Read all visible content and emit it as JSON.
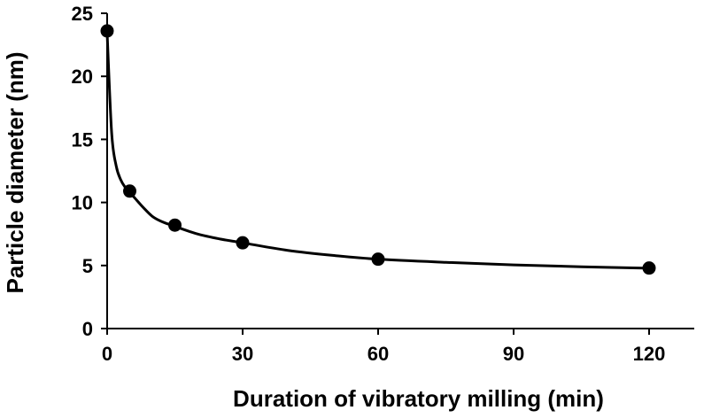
{
  "chart_data": {
    "type": "scatter",
    "title": "",
    "xlabel": "Duration of vibratory milling (min)",
    "ylabel": "Particle diameter (nm)",
    "xlim": [
      0,
      130
    ],
    "ylim": [
      0,
      25
    ],
    "xticks": [
      0,
      30,
      60,
      90,
      120
    ],
    "yticks": [
      0,
      5,
      10,
      15,
      20,
      25
    ],
    "grid": false,
    "legend": "none",
    "series": [
      {
        "name": "Particle diameter",
        "marker": "circle",
        "x": [
          0,
          5,
          15,
          30,
          60,
          120
        ],
        "y": [
          23.6,
          10.9,
          8.2,
          6.8,
          5.5,
          4.8
        ]
      }
    ],
    "trendline": {
      "type": "smooth-fit",
      "x": [
        0,
        1,
        2,
        3,
        4,
        5,
        6,
        8,
        10,
        12,
        15,
        20,
        25,
        30,
        40,
        50,
        60,
        75,
        90,
        105,
        120
      ],
      "y": [
        23.4,
        15.5,
        12.9,
        11.8,
        11.2,
        10.8,
        10.4,
        9.6,
        8.9,
        8.5,
        8.1,
        7.5,
        7.1,
        6.8,
        6.2,
        5.8,
        5.5,
        5.25,
        5.05,
        4.9,
        4.78
      ]
    },
    "colors": {
      "axis": "#000000",
      "marker": "#000000",
      "line": "#000000"
    }
  }
}
